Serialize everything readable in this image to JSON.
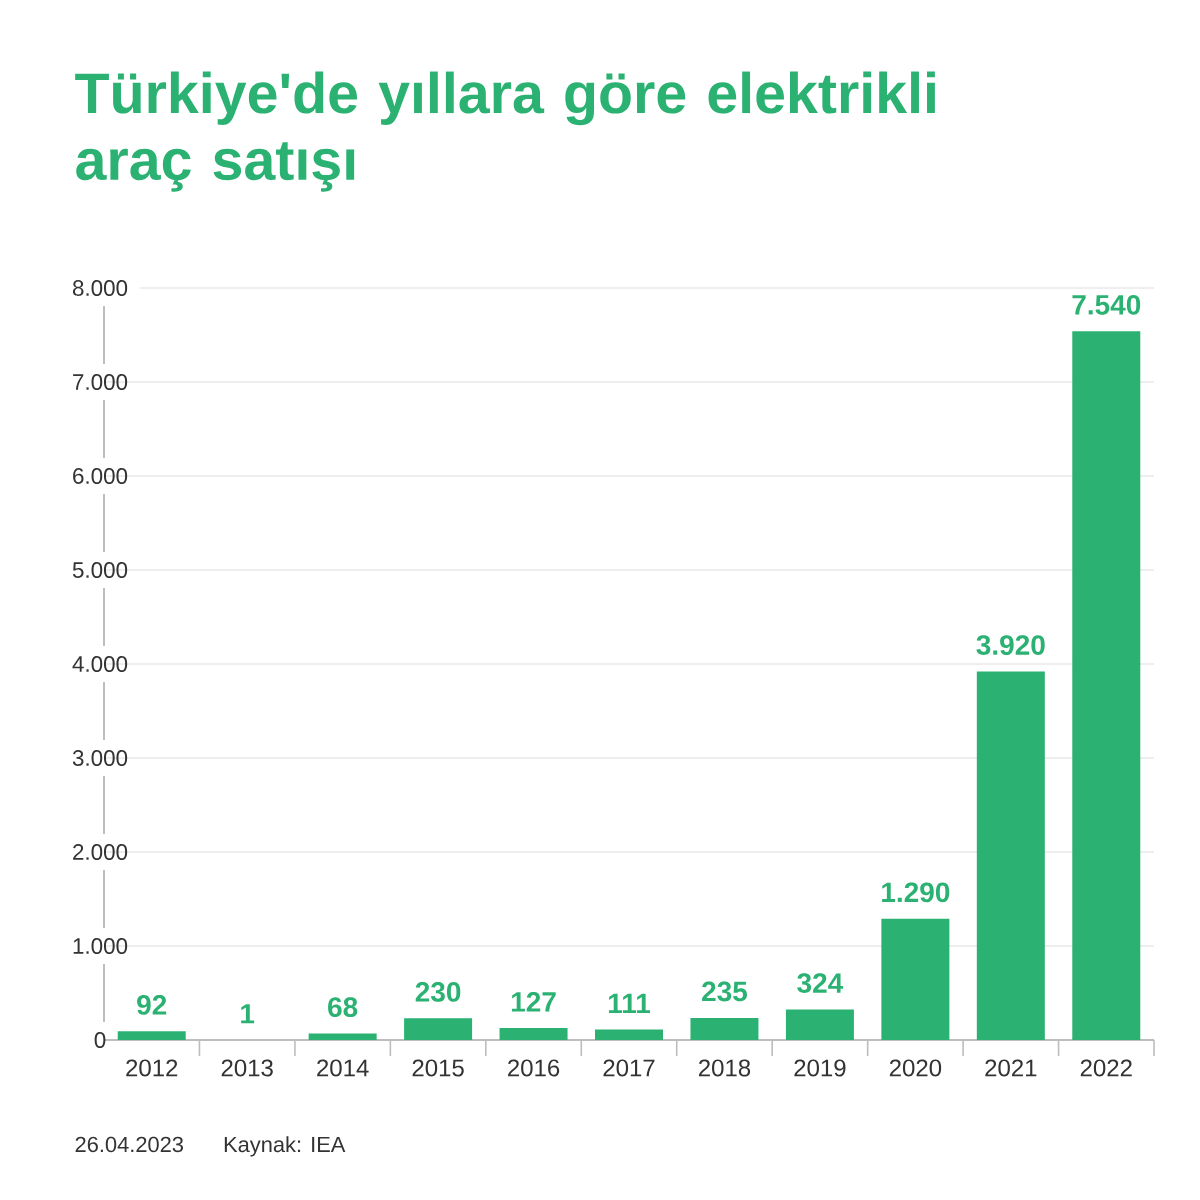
{
  "chart_data": {
    "type": "bar",
    "title": "Türkiye'de yıllara göre elektrikli araç satışı",
    "categories": [
      "2012",
      "2013",
      "2014",
      "2015",
      "2016",
      "2017",
      "2018",
      "2019",
      "2020",
      "2021",
      "2022"
    ],
    "values": [
      92,
      1,
      68,
      230,
      127,
      111,
      235,
      324,
      1290,
      3920,
      7540
    ],
    "value_labels": [
      "92",
      "1",
      "68",
      "230",
      "127",
      "111",
      "235",
      "324",
      "1.290",
      "3.920",
      "7.540"
    ],
    "color": "#2bb273",
    "ylim": [
      0,
      8000
    ],
    "yticks": [
      0,
      {
        "value": 1000,
        "label": "1.000"
      },
      {
        "value": 2000,
        "label": "2.000"
      },
      {
        "value": 3000,
        "label": "3.000"
      },
      {
        "value": 4000,
        "label": "4.000"
      },
      {
        "value": 5000,
        "label": "5.000"
      },
      {
        "value": 6000,
        "label": "6.000"
      },
      {
        "value": 7000,
        "label": "7.000"
      },
      {
        "value": 8000,
        "label": "8.000"
      }
    ],
    "grid": "y",
    "annotations": [
      "26.04.2023",
      "Kaynak: IEA"
    ]
  }
}
